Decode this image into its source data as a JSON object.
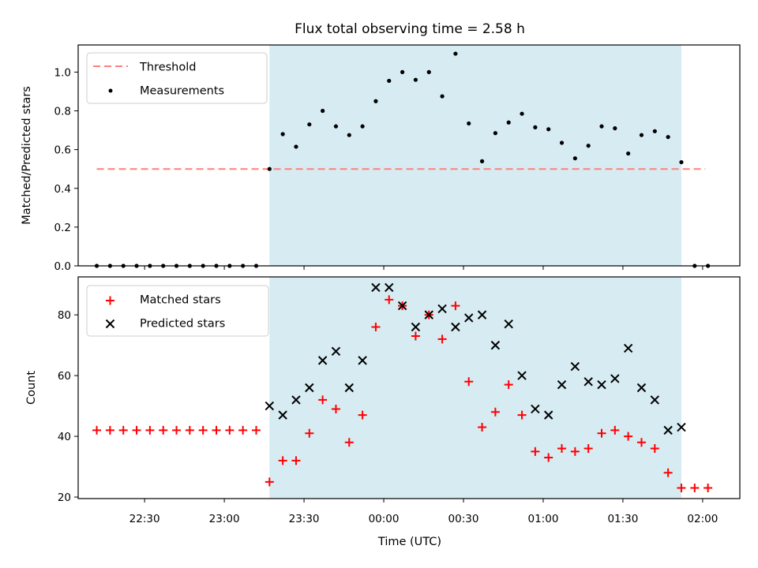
{
  "chart_data": [
    {
      "type": "scatter",
      "title": "Flux total observing time = 2.58 h",
      "xlabel": "",
      "ylabel": "Matched/Predicted stars",
      "ylim": [
        0,
        1.14
      ],
      "yticks": [
        "0.0",
        "0.2",
        "0.4",
        "0.6",
        "0.8",
        "1.0"
      ],
      "xlim": [
        "22:05",
        "02:14"
      ],
      "shaded_interval": [
        "23:17",
        "01:52"
      ],
      "threshold": {
        "name": "Threshold",
        "y": 0.5,
        "x_range": [
          "22:12",
          "02:01"
        ],
        "color": "#ff7f7f"
      },
      "legend": [
        "Threshold",
        "Measurements"
      ],
      "legend_position": "upper left",
      "series": [
        {
          "name": "Measurements",
          "color": "#000000",
          "x": [
            "22:12",
            "22:17",
            "22:22",
            "22:27",
            "22:32",
            "22:37",
            "22:42",
            "22:47",
            "22:52",
            "22:57",
            "23:02",
            "23:07",
            "23:12",
            "23:17",
            "23:22",
            "23:27",
            "23:32",
            "23:37",
            "23:42",
            "23:47",
            "23:52",
            "23:57",
            "00:02",
            "00:07",
            "00:12",
            "00:17",
            "00:22",
            "00:27",
            "00:32",
            "00:37",
            "00:42",
            "00:47",
            "00:52",
            "00:57",
            "01:02",
            "01:07",
            "01:12",
            "01:17",
            "01:22",
            "01:27",
            "01:32",
            "01:37",
            "01:42",
            "01:47",
            "01:52",
            "01:57",
            "02:02"
          ],
          "y": [
            0,
            0,
            0,
            0,
            0,
            0,
            0,
            0,
            0,
            0,
            0,
            0,
            0,
            0.5,
            0.68,
            0.615,
            0.73,
            0.8,
            0.72,
            0.675,
            0.72,
            0.85,
            0.955,
            1.0,
            0.96,
            1.0,
            0.875,
            1.095,
            0.735,
            0.54,
            0.685,
            0.74,
            0.785,
            0.715,
            0.705,
            0.635,
            0.555,
            0.62,
            0.72,
            0.71,
            0.58,
            0.675,
            0.695,
            0.665,
            0.535,
            0,
            0
          ]
        }
      ]
    },
    {
      "type": "scatter",
      "title": "",
      "xlabel": "Time (UTC)",
      "ylabel": "Count",
      "ylim": [
        19.5,
        92.5
      ],
      "yticks": [
        "20",
        "40",
        "60",
        "80"
      ],
      "xticks": [
        "22:30",
        "23:00",
        "23:30",
        "00:00",
        "00:30",
        "01:00",
        "01:30",
        "02:00"
      ],
      "xlim": [
        "22:05",
        "02:14"
      ],
      "shaded_interval": [
        "23:17",
        "01:52"
      ],
      "legend": [
        "Matched stars",
        "Predicted stars"
      ],
      "legend_position": "upper left",
      "series": [
        {
          "name": "Matched stars",
          "marker": "plus",
          "color": "#ff0000",
          "x": [
            "22:12",
            "22:17",
            "22:22",
            "22:27",
            "22:32",
            "22:37",
            "22:42",
            "22:47",
            "22:52",
            "22:57",
            "23:02",
            "23:07",
            "23:12",
            "23:17",
            "23:22",
            "23:27",
            "23:32",
            "23:37",
            "23:42",
            "23:47",
            "23:52",
            "23:57",
            "00:02",
            "00:07",
            "00:12",
            "00:17",
            "00:22",
            "00:27",
            "00:32",
            "00:37",
            "00:42",
            "00:47",
            "00:52",
            "00:57",
            "01:02",
            "01:07",
            "01:12",
            "01:17",
            "01:22",
            "01:27",
            "01:32",
            "01:37",
            "01:42",
            "01:47",
            "01:52",
            "01:57",
            "02:02"
          ],
          "y": [
            42,
            42,
            42,
            42,
            42,
            42,
            42,
            42,
            42,
            42,
            42,
            42,
            42,
            25,
            32,
            32,
            41,
            52,
            49,
            38,
            47,
            76,
            85,
            83,
            73,
            80,
            72,
            83,
            58,
            43,
            48,
            57,
            47,
            35,
            33,
            36,
            35,
            36,
            41,
            42,
            40,
            38,
            36,
            28,
            23,
            23,
            23
          ]
        },
        {
          "name": "Predicted stars",
          "marker": "x",
          "color": "#000000",
          "x": [
            "23:17",
            "23:22",
            "23:27",
            "23:32",
            "23:37",
            "23:42",
            "23:47",
            "23:52",
            "23:57",
            "00:02",
            "00:07",
            "00:12",
            "00:17",
            "00:22",
            "00:27",
            "00:32",
            "00:37",
            "00:42",
            "00:47",
            "00:52",
            "00:57",
            "01:02",
            "01:07",
            "01:12",
            "01:17",
            "01:22",
            "01:27",
            "01:32",
            "01:37",
            "01:42",
            "01:47",
            "01:52"
          ],
          "y": [
            50,
            47,
            52,
            56,
            65,
            68,
            56,
            65,
            89,
            89,
            83,
            76,
            80,
            82,
            76,
            79,
            80,
            70,
            77,
            60,
            49,
            47,
            57,
            63,
            58,
            57,
            59,
            69,
            56,
            52,
            42,
            43
          ]
        }
      ]
    }
  ]
}
